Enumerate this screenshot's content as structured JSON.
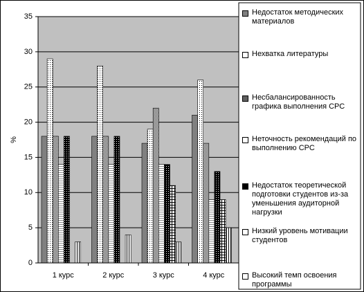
{
  "chart_data": {
    "type": "bar",
    "y_label": "%",
    "categories": [
      "1 курс",
      "2 курс",
      "3 курс",
      "4 курс"
    ],
    "series": [
      {
        "name": "Недостаток методических материалов",
        "color": "#808080",
        "values": [
          18,
          18,
          17,
          21
        ]
      },
      {
        "name": "Нехватка литературы",
        "color": "#ffffff",
        "values": [
          29,
          28,
          19,
          26
        ]
      },
      {
        "name": "Несбалансированность графика выполнения СРС",
        "color": "#606060",
        "values": [
          18,
          18,
          22,
          17
        ]
      },
      {
        "name": "Неточность рекомендаций по выполнению СРС",
        "color": "#ffffff",
        "values": [
          14,
          14,
          14,
          9
        ]
      },
      {
        "name": "Недостаток теоретической подготовки студентов из-за уменьшения аудиторной нагрузки",
        "color": "#000000",
        "values": [
          18,
          18,
          14,
          13
        ]
      },
      {
        "name": "Низкий уровень мотивации студентов",
        "color": "#ffffff",
        "values": [
          0,
          0,
          11,
          9
        ]
      },
      {
        "name": "Высокий темп освоения программы",
        "color": "#ffffff",
        "values": [
          3,
          4,
          3,
          5
        ]
      }
    ],
    "ylim": [
      0,
      35
    ],
    "yticks": [
      0,
      5,
      10,
      15,
      20,
      25,
      30,
      35
    ],
    "grid": true,
    "legend": "right"
  }
}
